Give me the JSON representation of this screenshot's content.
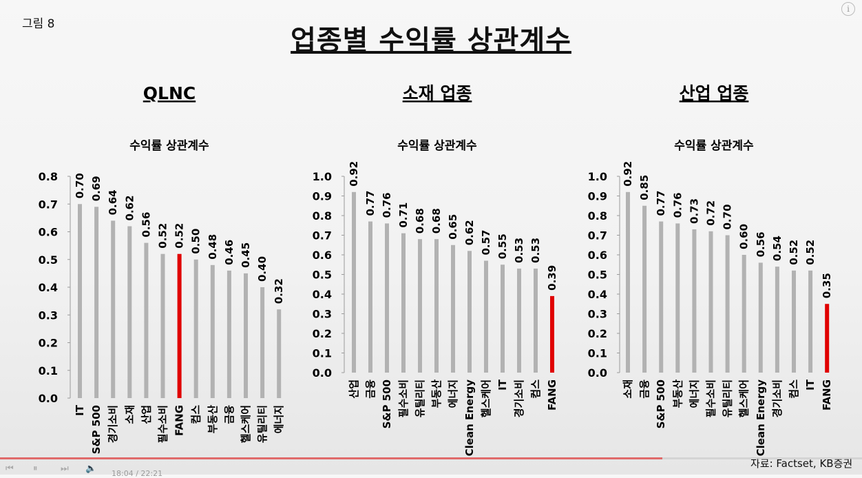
{
  "figure_label": "그림 8",
  "main_title": "업종별 수익률 상관계수",
  "source": "자료: Factset, KB증권",
  "video": {
    "time": "18:04 / 22:21",
    "progress": 0.768
  },
  "colors": {
    "bar": "#b2b2b2",
    "highlight": "#e00000",
    "axis": "#9a9a9a"
  },
  "chart_data": [
    {
      "type": "bar",
      "section_title": "QLNC",
      "title": "수익률 상관계수",
      "categories": [
        "IT",
        "S&P 500",
        "경기소비",
        "소재",
        "산업",
        "필수소비",
        "FANG",
        "컴스",
        "부동산",
        "금융",
        "헬스케어",
        "유틸리티",
        "에너지"
      ],
      "values": [
        0.7,
        0.69,
        0.64,
        0.62,
        0.56,
        0.52,
        0.52,
        0.5,
        0.48,
        0.46,
        0.45,
        0.4,
        0.32
      ],
      "labels": [
        "0.70",
        "0.69",
        "0.64",
        "0.62",
        "0.56",
        "0.52",
        "0.52",
        "0.50",
        "0.48",
        "0.46",
        "0.45",
        "0.40",
        "0.32"
      ],
      "highlight": "FANG",
      "ylim": [
        0,
        0.8
      ],
      "yticks": [
        "0.8",
        "0.7",
        "0.6",
        "0.5",
        "0.4",
        "0.3",
        "0.2",
        "0.1",
        "0.0"
      ]
    },
    {
      "type": "bar",
      "section_title": "소재 업종",
      "title": "수익률 상관계수",
      "categories": [
        "산업",
        "금융",
        "S&P 500",
        "필수소비",
        "유틸리티",
        "부동산",
        "에너지",
        "Clean Energy",
        "헬스케어",
        "IT",
        "경기소비",
        "컴스",
        "FANG"
      ],
      "values": [
        0.92,
        0.77,
        0.76,
        0.71,
        0.68,
        0.68,
        0.65,
        0.62,
        0.57,
        0.55,
        0.53,
        0.53,
        0.39
      ],
      "labels": [
        "0.92",
        "0.77",
        "0.76",
        "0.71",
        "0.68",
        "0.68",
        "0.65",
        "0.62",
        "0.57",
        "0.55",
        "0.53",
        "0.53",
        "0.39"
      ],
      "highlight": "FANG",
      "ylim": [
        0,
        1.0
      ],
      "yticks": [
        "1.0",
        "0.9",
        "0.8",
        "0.7",
        "0.6",
        "0.5",
        "0.4",
        "0.3",
        "0.2",
        "0.1",
        "0.0"
      ]
    },
    {
      "type": "bar",
      "section_title": "산업 업종",
      "title": "수익률 상관계수",
      "categories": [
        "소재",
        "금융",
        "S&P 500",
        "부동산",
        "에너지",
        "필수소비",
        "유틸리티",
        "헬스케어",
        "Clean Energy",
        "경기소비",
        "컴스",
        "IT",
        "FANG"
      ],
      "values": [
        0.92,
        0.85,
        0.77,
        0.76,
        0.73,
        0.72,
        0.7,
        0.6,
        0.56,
        0.54,
        0.52,
        0.52,
        0.35
      ],
      "labels": [
        "0.92",
        "0.85",
        "0.77",
        "0.76",
        "0.73",
        "0.72",
        "0.70",
        "0.60",
        "0.56",
        "0.54",
        "0.52",
        "0.52",
        "0.35"
      ],
      "highlight": "FANG",
      "ylim": [
        0,
        1.0
      ],
      "yticks": [
        "1.0",
        "0.9",
        "0.8",
        "0.7",
        "0.6",
        "0.5",
        "0.4",
        "0.3",
        "0.2",
        "0.1",
        "0.0"
      ]
    }
  ]
}
